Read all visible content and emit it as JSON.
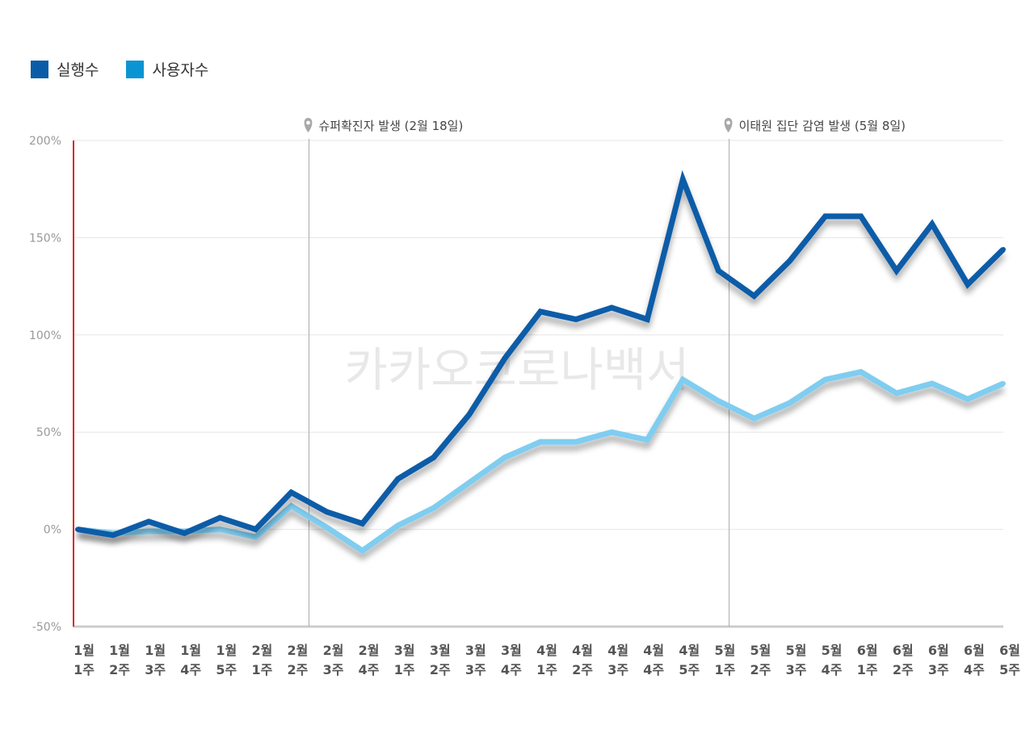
{
  "legend": [
    {
      "label": "실행수",
      "color": "#0a5ca8"
    },
    {
      "label": "사용자수",
      "color": "#0b94d4"
    }
  ],
  "watermark": "카카오코로나백서",
  "chart_data": {
    "type": "line",
    "title": "",
    "xlabel": "",
    "ylabel": "",
    "ylim": [
      -50,
      200
    ],
    "y_ticks": [
      200,
      150,
      100,
      50,
      0,
      -50
    ],
    "y_tick_labels": [
      "200%",
      "150%",
      "100%",
      "50%",
      "0%",
      "-50%"
    ],
    "categories": [
      [
        "1월",
        "1주"
      ],
      [
        "1월",
        "2주"
      ],
      [
        "1월",
        "3주"
      ],
      [
        "1월",
        "4주"
      ],
      [
        "1월",
        "5주"
      ],
      [
        "2월",
        "1주"
      ],
      [
        "2월",
        "2주"
      ],
      [
        "2월",
        "3주"
      ],
      [
        "2월",
        "4주"
      ],
      [
        "3월",
        "1주"
      ],
      [
        "3월",
        "2주"
      ],
      [
        "3월",
        "3주"
      ],
      [
        "3월",
        "4주"
      ],
      [
        "4월",
        "1주"
      ],
      [
        "4월",
        "2주"
      ],
      [
        "4월",
        "3주"
      ],
      [
        "4월",
        "4주"
      ],
      [
        "4월",
        "5주"
      ],
      [
        "5월",
        "1주"
      ],
      [
        "5월",
        "2주"
      ],
      [
        "5월",
        "3주"
      ],
      [
        "5월",
        "4주"
      ],
      [
        "6월",
        "1주"
      ],
      [
        "6월",
        "2주"
      ],
      [
        "6월",
        "3주"
      ],
      [
        "6월",
        "4주"
      ],
      [
        "6월",
        "5주"
      ]
    ],
    "series": [
      {
        "name": "실행수",
        "color": "#0a5ca8",
        "values": [
          0,
          -3,
          4,
          -2,
          6,
          0,
          19,
          9,
          3,
          26,
          37,
          59,
          88,
          112,
          108,
          114,
          108,
          180,
          133,
          120,
          138,
          161,
          161,
          133,
          157,
          126,
          144
        ]
      },
      {
        "name": "사용자수",
        "color": "#7fcdf0",
        "values": [
          0,
          -2,
          -1,
          -1,
          0,
          -4,
          12,
          1,
          -11,
          2,
          11,
          24,
          37,
          45,
          45,
          50,
          46,
          77,
          66,
          57,
          65,
          77,
          81,
          70,
          75,
          67,
          75
        ]
      }
    ],
    "annotations": [
      {
        "label": "슈퍼확진자 발생 (2월 18일)",
        "category_index": 6.5
      },
      {
        "label": "이태원 집단 감염 발생 (5월 8일)",
        "category_index": 18.3
      }
    ],
    "grid": true
  }
}
